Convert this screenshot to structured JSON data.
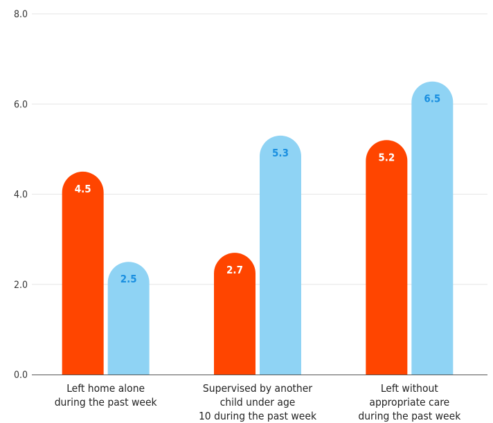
{
  "chart_data": {
    "type": "bar",
    "categories": [
      [
        "Left home alone",
        "during the past week"
      ],
      [
        "Supervised by another",
        "child under age",
        "10 during the past week"
      ],
      [
        "Left without",
        "appropriate care",
        "during the past week"
      ]
    ],
    "series": [
      {
        "values": [
          4.5,
          2.7,
          5.2
        ],
        "color": "#ff4500",
        "label_color": "#ffffff"
      },
      {
        "values": [
          2.5,
          5.3,
          6.5
        ],
        "color": "#8fd3f4",
        "label_color": "#1a8fe0"
      }
    ],
    "ylim": [
      0,
      8
    ],
    "yticks": [
      "0.0",
      "2.0",
      "4.0",
      "6.0",
      "8.0"
    ],
    "yticks_values": [
      0,
      2,
      4,
      6,
      8
    ],
    "grid": true,
    "colors": {
      "grid": "#e6e6e6",
      "axis": "#555555"
    }
  }
}
